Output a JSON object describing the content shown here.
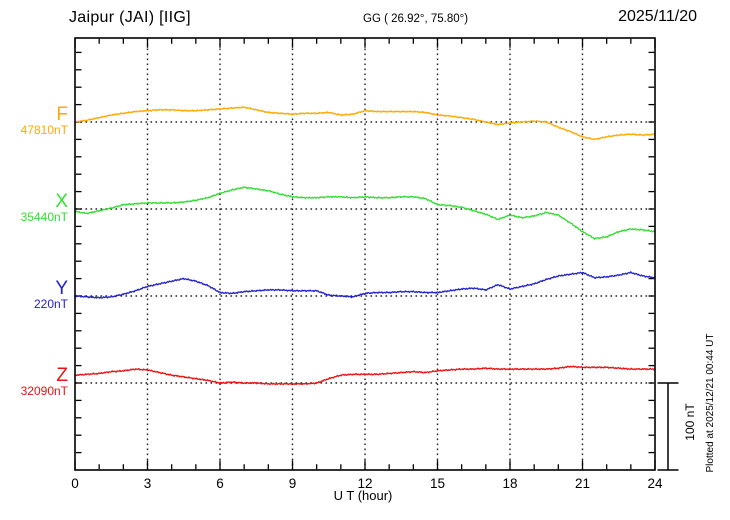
{
  "header": {
    "station_title": "Jaipur (JAI)  [IIG]",
    "coords_label": "GG ( 26.92°,  75.80°)",
    "date_label": "2025/11/20"
  },
  "side_note": "Plotted at 2025/12/21 00:44 UT",
  "scale_bar": {
    "label": "100 nT",
    "nT": 100
  },
  "chart_data": {
    "type": "line",
    "title": "Jaipur (JAI) [IIG] magnetogram 2025/11/20",
    "xlabel": "U T (hour)",
    "xlim": [
      0,
      24
    ],
    "x_ticks_major": [
      0,
      3,
      6,
      9,
      12,
      15,
      18,
      21,
      24
    ],
    "x_minor_step_hours": 1,
    "grid": "dotted vertical lines every 3 h; dotted horizontal line at each series baseline",
    "y_tick_step_nT": 20,
    "scale_nT_per_division": 100,
    "x_start_hours": 0,
    "x_step_hours": 0.5,
    "series": [
      {
        "name": "F",
        "baseline_label": "47810nT",
        "baseline_nT": 47810,
        "color": "#ffaa00",
        "offsets_nT": [
          0,
          2,
          5,
          8,
          10,
          12,
          13,
          14,
          14,
          13,
          13,
          14,
          15,
          16,
          17,
          14,
          11,
          10,
          9,
          10,
          10,
          11,
          8,
          9,
          13,
          12,
          12,
          12,
          12,
          11,
          8,
          7,
          5,
          3,
          0,
          -3,
          -1,
          0,
          1,
          0,
          -6,
          -11,
          -17,
          -20,
          -17,
          -15,
          -14,
          -15,
          -14
        ]
      },
      {
        "name": "X",
        "baseline_label": "35440nT",
        "baseline_nT": 35440,
        "color": "#33dd33",
        "offsets_nT": [
          -3,
          -5,
          -2,
          1,
          5,
          6,
          7,
          7,
          7,
          8,
          10,
          13,
          18,
          22,
          25,
          23,
          21,
          17,
          14,
          13,
          13,
          14,
          14,
          13,
          14,
          13,
          13,
          14,
          14,
          12,
          5,
          4,
          2,
          -2,
          -6,
          -12,
          -7,
          -10,
          -8,
          -4,
          -7,
          -16,
          -26,
          -34,
          -32,
          -26,
          -23,
          -24,
          -26
        ]
      },
      {
        "name": "Y",
        "baseline_label": "220nT",
        "baseline_nT": 220,
        "color": "#2222cc",
        "offsets_nT": [
          0,
          -1,
          -2,
          -1,
          2,
          6,
          11,
          14,
          17,
          20,
          17,
          12,
          4,
          3,
          5,
          6,
          7,
          7,
          6,
          6,
          6,
          1,
          0,
          -1,
          3,
          4,
          4,
          5,
          5,
          4,
          4,
          6,
          8,
          9,
          7,
          13,
          8,
          11,
          14,
          19,
          23,
          25,
          27,
          21,
          22,
          24,
          27,
          23,
          21
        ]
      },
      {
        "name": "Z",
        "baseline_label": "32090nT",
        "baseline_nT": 32090,
        "color": "#ee1111",
        "offsets_nT": [
          9,
          10,
          11,
          13,
          14,
          16,
          15,
          12,
          9,
          7,
          5,
          3,
          0,
          1,
          0,
          0,
          -1,
          -1,
          -1,
          -1,
          0,
          5,
          9,
          10,
          10,
          10,
          11,
          12,
          13,
          12,
          14,
          15,
          16,
          16,
          17,
          16,
          16,
          16,
          16,
          16,
          17,
          19,
          18,
          18,
          18,
          17,
          16,
          16,
          16
        ]
      }
    ]
  }
}
